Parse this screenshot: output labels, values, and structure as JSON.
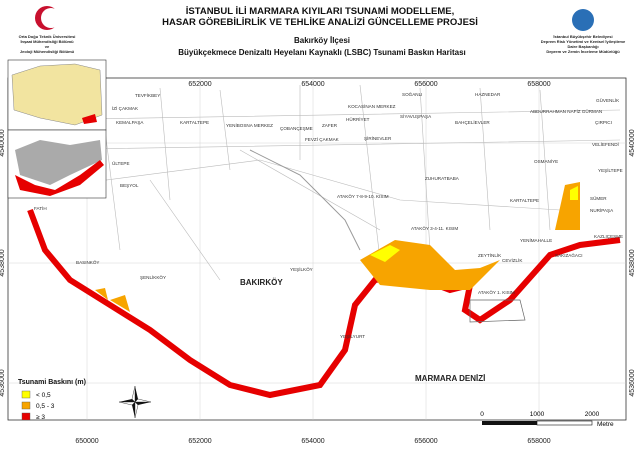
{
  "header": {
    "title_line1": "İSTANBUL İLİ MARMARA KIYILARI TSUNAMİ MODELLEME,",
    "title_line2": "HASAR GÖREBİLİRLİK VE TEHLİKE ANALİZİ GÜNCELLEME PROJESİ",
    "district": "Bakırköy İlçesi",
    "map_title": "Büyükçekmece Denizaltı Heyelanı Kaynaklı (LSBC) Tsunami Baskın Haritası",
    "left_org": [
      "Orta Doğu Teknik Üniversitesi",
      "İnşaat Mühendisliği Bölümü",
      "ve",
      "Jeoloji Mühendisliği Bölümü"
    ],
    "right_org": [
      "İstanbul Büyükşehir Belediyesi",
      "Deprem Risk Yönetimi ve Kentsel İyileştirme",
      "Daire Başkanlığı",
      "Deprem ve Zemin İnceleme Müdürlüğü"
    ]
  },
  "map": {
    "eastings": [
      "650000",
      "652000",
      "654000",
      "656000",
      "658000"
    ],
    "northings": [
      "4540000",
      "4538000",
      "4536000"
    ],
    "places": [
      "TEVFİKBEY",
      "İZİ ÇAKMAK",
      "KEMALPAŞA",
      "KARTALTEPE",
      "YENİBOSNA MERKEZ",
      "ÇOBANÇEŞME",
      "ZAFER",
      "KOCASİNAN MERKEZ",
      "SOĞANLI",
      "HÜRRİYET",
      "ŞİRİNEVLER",
      "FEVZİ ÇAKMAK",
      "SİYAVUŞPAŞA",
      "HAZNEDAR",
      "BAHÇELİEVLER",
      "ABDURRAHMAN NAFİZ GÜRMAN",
      "ÇIRPICI",
      "GÜVENLİK",
      "VELİEFENDİ",
      "OSMANİYE",
      "YEŞİLTEPE",
      "SÜMER",
      "NURİPAŞA",
      "KAZLIÇEŞME",
      "KARTALTEPE",
      "ZUHURATBABA",
      "ATAKÖY 7-8-9-10. KISIM",
      "ATAKÖY 3-4-11. KISIM",
      "ZEYTİNLİK",
      "CEVİZLİK",
      "YENİMAHALLE",
      "SAKIZAĞACI",
      "ATAKÖY 1. KISIM",
      "YEŞİLKÖY",
      "BAKIRKÖY",
      "YEŞİLYURT",
      "ŞENLİKKÖY",
      "BASINKÖY",
      "FATİH",
      "BEŞYOL",
      "ÜLTEPE",
      "MARMARA DENİZİ"
    ]
  },
  "legend": {
    "title": "Tsunami Baskını (m)",
    "items": [
      "< 0,5",
      "0,5 - 3",
      "≥ 3"
    ]
  },
  "scalebar": {
    "ticks": [
      "0",
      "1000",
      "2000"
    ],
    "unit": "Metre"
  }
}
